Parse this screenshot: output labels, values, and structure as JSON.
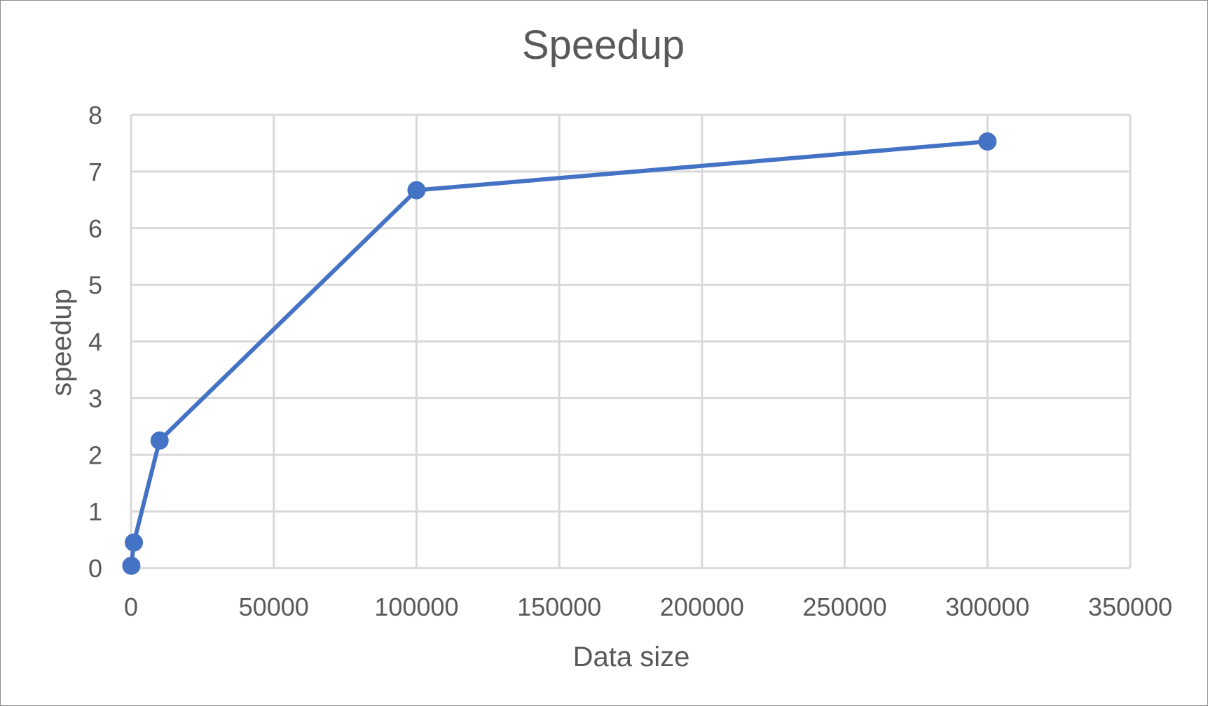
{
  "chart_data": {
    "type": "line",
    "title": "Speedup",
    "xlabel": "Data size",
    "ylabel": "speedup",
    "x": [
      100,
      1000,
      10000,
      100000,
      300000
    ],
    "series": [
      {
        "values": [
          0.04,
          0.45,
          2.25,
          6.67,
          7.53
        ]
      }
    ],
    "xlim": [
      0,
      350000
    ],
    "ylim": [
      0,
      8
    ],
    "x_ticks": [
      0,
      50000,
      100000,
      150000,
      200000,
      250000,
      300000,
      350000
    ],
    "y_ticks": [
      0,
      1,
      2,
      3,
      4,
      5,
      6,
      7,
      8
    ],
    "x_tick_labels": [
      "0",
      "50000",
      "100000",
      "150000",
      "200000",
      "250000",
      "300000",
      "350000"
    ],
    "y_tick_labels": [
      "0",
      "1",
      "2",
      "3",
      "4",
      "5",
      "6",
      "7",
      "8"
    ],
    "grid": true,
    "legend": "none",
    "markers": true,
    "line_color": "#4472c4",
    "grid_color": "#d9d9d9",
    "text_color": "#595959"
  }
}
